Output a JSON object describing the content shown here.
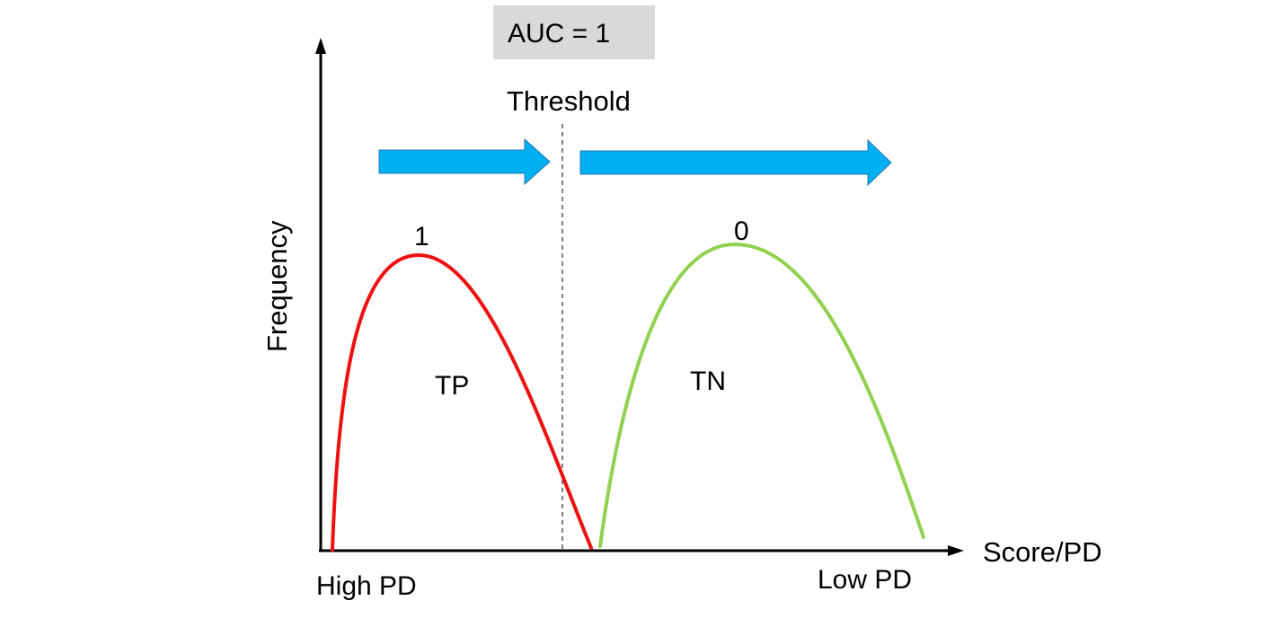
{
  "auc_box": {
    "text": "AUC = 1",
    "fill": "#d9d9d9"
  },
  "threshold": {
    "label": "Threshold"
  },
  "axes": {
    "y_label": "Frequency",
    "x_label": "Score/PD",
    "x_left_label": "High PD",
    "x_right_label": "Low PD"
  },
  "curves": {
    "positive": {
      "peak_label": "1",
      "region_label": "TP",
      "color": "#ee1111"
    },
    "negative": {
      "peak_label": "0",
      "region_label": "TN",
      "color": "#92d050"
    }
  },
  "arrows": {
    "color": "#00b0f0",
    "stroke": "#2e75b6"
  }
}
